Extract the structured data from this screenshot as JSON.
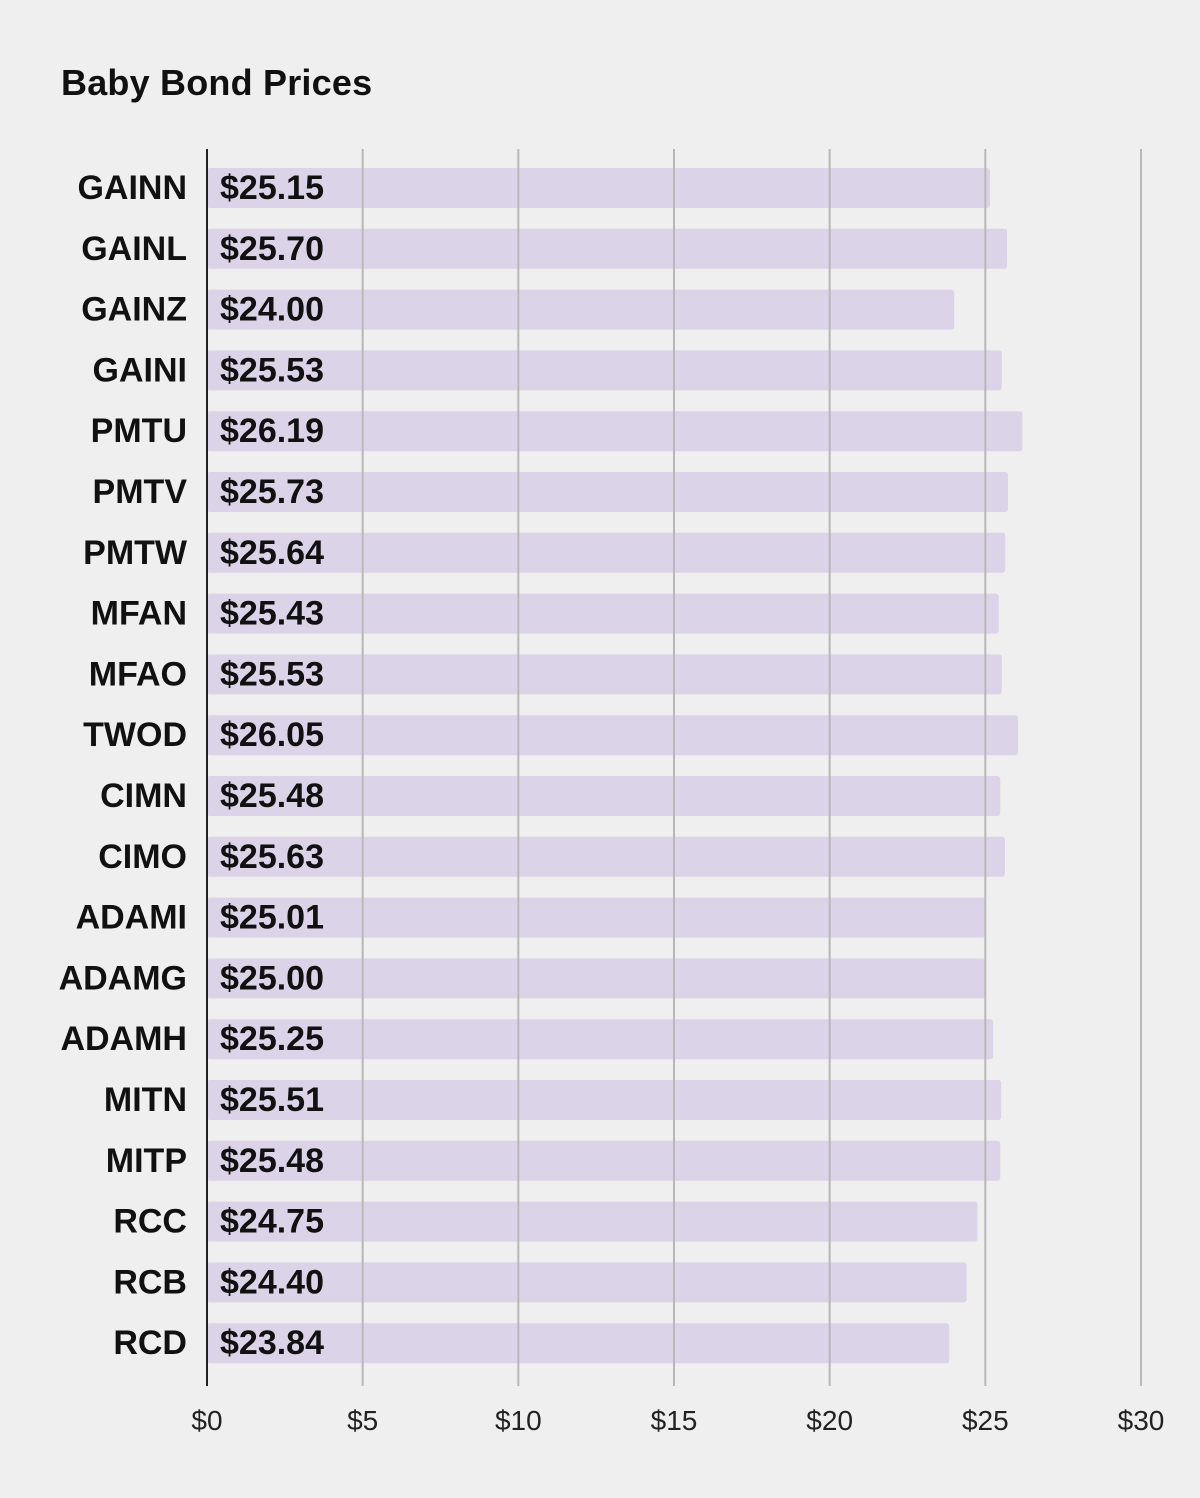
{
  "chart_data": {
    "type": "bar",
    "orientation": "horizontal",
    "title": "Baby Bond Prices",
    "xlabel": "",
    "ylabel": "",
    "categories": [
      "GAINN",
      "GAINL",
      "GAINZ",
      "GAINI",
      "PMTU",
      "PMTV",
      "PMTW",
      "MFAN",
      "MFAO",
      "TWOD",
      "CIMN",
      "CIMO",
      "ADAMI",
      "ADAMG",
      "ADAMH",
      "MITN",
      "MITP",
      "RCC",
      "RCB",
      "RCD"
    ],
    "values": [
      25.15,
      25.7,
      24.0,
      25.53,
      26.19,
      25.73,
      25.64,
      25.43,
      25.53,
      26.05,
      25.48,
      25.63,
      25.01,
      25.0,
      25.25,
      25.51,
      25.48,
      24.75,
      24.4,
      23.84
    ],
    "value_labels": [
      "$25.15",
      "$25.70",
      "$24.00",
      "$25.53",
      "$26.19",
      "$25.73",
      "$25.64",
      "$25.43",
      "$25.53",
      "$26.05",
      "$25.48",
      "$25.63",
      "$25.01",
      "$25.00",
      "$25.25",
      "$25.51",
      "$25.48",
      "$24.75",
      "$24.40",
      "$23.84"
    ],
    "xlim": [
      0,
      30
    ],
    "ticks": [
      0,
      5,
      10,
      15,
      20,
      25,
      30
    ],
    "tick_labels": [
      "$0",
      "$5",
      "$10",
      "$15",
      "$20",
      "$25",
      "$30"
    ],
    "grid": "vertical",
    "legend": "none",
    "colors": {
      "bar": "#dbd3e8",
      "grid": "#b8b8b8",
      "axis": "#222222",
      "background": "#efefef"
    }
  }
}
